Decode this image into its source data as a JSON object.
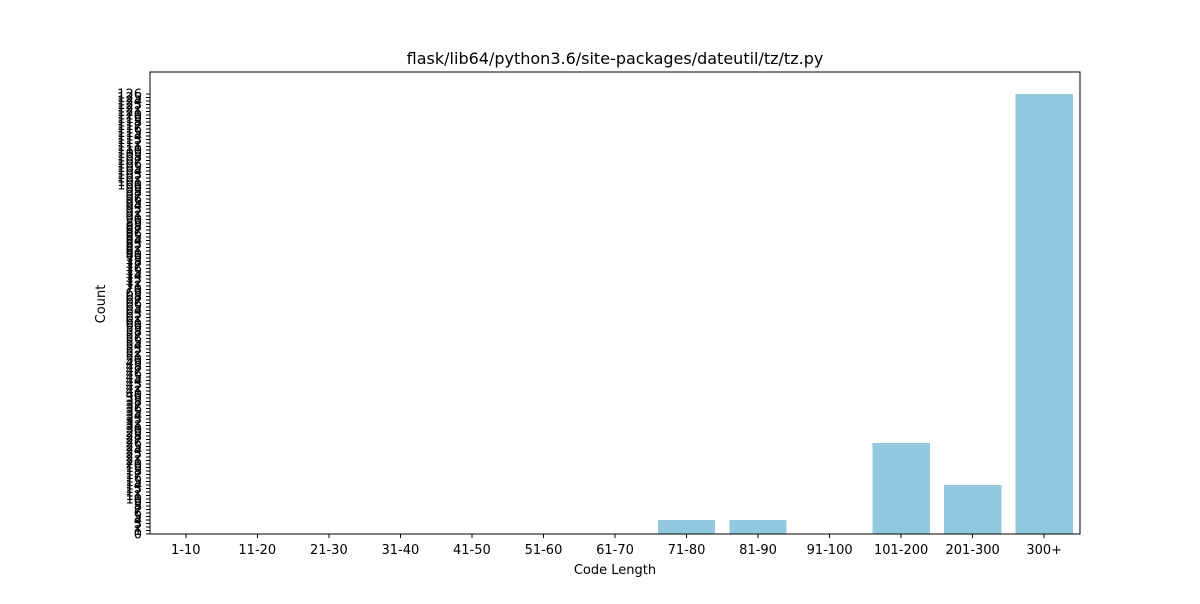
{
  "chart_data": {
    "type": "bar",
    "title": "flask/lib64/python3.6/site-packages/dateutil/tz/tz.py",
    "xlabel": "Code Length",
    "ylabel": "Count",
    "categories": [
      "1-10",
      "11-20",
      "21-30",
      "31-40",
      "41-50",
      "51-60",
      "61-70",
      "71-80",
      "81-90",
      "91-100",
      "101-200",
      "201-300",
      "300+"
    ],
    "values": [
      0,
      0,
      0,
      0,
      0,
      0,
      0,
      4,
      4,
      0,
      26,
      14,
      126
    ],
    "ylim": [
      0,
      126
    ],
    "yticks": [
      0,
      1,
      2,
      3,
      4,
      5,
      6,
      7,
      8,
      9,
      10,
      11,
      12,
      13,
      14,
      15,
      16,
      17,
      18,
      19,
      20,
      21,
      22,
      23,
      24,
      25,
      26,
      27,
      28,
      29,
      30,
      31,
      32,
      33,
      34,
      35,
      36,
      37,
      38,
      39,
      40,
      41,
      42,
      43,
      44,
      45,
      46,
      47,
      48,
      49,
      50,
      51,
      52,
      53,
      54,
      55,
      56,
      57,
      58,
      59,
      60,
      61,
      62,
      63,
      64,
      65,
      66,
      67,
      68,
      69,
      70,
      71,
      72,
      73,
      74,
      75,
      76,
      77,
      78,
      79,
      80,
      81,
      82,
      83,
      84,
      85,
      86,
      87,
      88,
      89,
      90,
      91,
      92,
      93,
      94,
      95,
      96,
      97,
      98,
      99,
      100,
      101,
      102,
      103,
      104,
      105,
      106,
      107,
      108,
      109,
      110,
      111,
      112,
      113,
      114,
      115,
      116,
      117,
      118,
      119,
      120,
      121,
      122,
      123,
      124,
      125,
      126
    ],
    "bar_color": "#92c9de",
    "grid": false,
    "legend": "none"
  }
}
